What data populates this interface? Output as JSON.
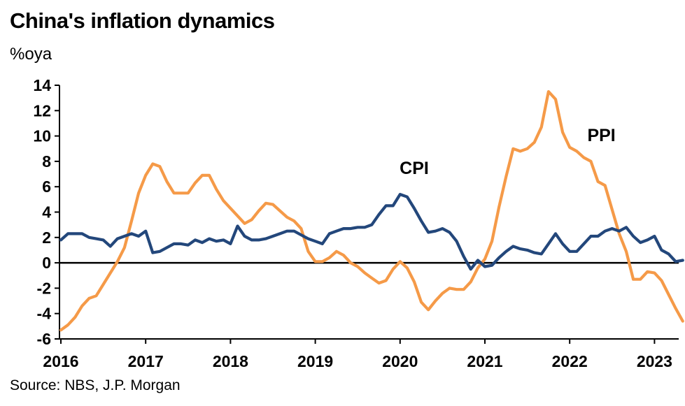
{
  "title": "China's inflation dynamics",
  "source": "Source: NBS, J.P. Morgan",
  "chart_data": {
    "type": "line",
    "title": "China's inflation dynamics",
    "ylabel": "%oya",
    "xlabel": "",
    "ylim": [
      -6,
      14
    ],
    "yticks": [
      -6,
      -4,
      -2,
      0,
      2,
      4,
      6,
      8,
      10,
      12,
      14
    ],
    "xlim": [
      "2016-01",
      "2023-05"
    ],
    "xticks": [
      "2016",
      "2017",
      "2018",
      "2019",
      "2020",
      "2021",
      "2022",
      "2023"
    ],
    "zero_line": true,
    "grid": false,
    "legend": "none",
    "colors": {
      "CPI": "#23477b",
      "PPI": "#f59a48"
    },
    "series": [
      {
        "name": "CPI",
        "color": "#23477b",
        "annotation_at": "2020-03",
        "x": [
          "2016-01",
          "2016-02",
          "2016-03",
          "2016-04",
          "2016-05",
          "2016-06",
          "2016-07",
          "2016-08",
          "2016-09",
          "2016-10",
          "2016-11",
          "2016-12",
          "2017-01",
          "2017-02",
          "2017-03",
          "2017-04",
          "2017-05",
          "2017-06",
          "2017-07",
          "2017-08",
          "2017-09",
          "2017-10",
          "2017-11",
          "2017-12",
          "2018-01",
          "2018-02",
          "2018-03",
          "2018-04",
          "2018-05",
          "2018-06",
          "2018-07",
          "2018-08",
          "2018-09",
          "2018-10",
          "2018-11",
          "2018-12",
          "2019-01",
          "2019-02",
          "2019-03",
          "2019-04",
          "2019-05",
          "2019-06",
          "2019-07",
          "2019-08",
          "2019-09",
          "2019-10",
          "2019-11",
          "2019-12",
          "2020-01",
          "2020-02",
          "2020-03",
          "2020-04",
          "2020-05",
          "2020-06",
          "2020-07",
          "2020-08",
          "2020-09",
          "2020-10",
          "2020-11",
          "2020-12",
          "2021-01",
          "2021-02",
          "2021-03",
          "2021-04",
          "2021-05",
          "2021-06",
          "2021-07",
          "2021-08",
          "2021-09",
          "2021-10",
          "2021-11",
          "2021-12",
          "2022-01",
          "2022-02",
          "2022-03",
          "2022-04",
          "2022-05",
          "2022-06",
          "2022-07",
          "2022-08",
          "2022-09",
          "2022-10",
          "2022-11",
          "2022-12",
          "2023-01",
          "2023-02",
          "2023-03",
          "2023-04",
          "2023-05"
        ],
        "values": [
          1.8,
          2.3,
          2.3,
          2.3,
          2.0,
          1.9,
          1.8,
          1.3,
          1.9,
          2.1,
          2.3,
          2.1,
          2.5,
          0.8,
          0.9,
          1.2,
          1.5,
          1.5,
          1.4,
          1.8,
          1.6,
          1.9,
          1.7,
          1.8,
          1.5,
          2.9,
          2.1,
          1.8,
          1.8,
          1.9,
          2.1,
          2.3,
          2.5,
          2.5,
          2.2,
          1.9,
          1.7,
          1.5,
          2.3,
          2.5,
          2.7,
          2.7,
          2.8,
          2.8,
          3.0,
          3.8,
          4.5,
          4.5,
          5.4,
          5.2,
          4.3,
          3.3,
          2.4,
          2.5,
          2.7,
          2.4,
          1.7,
          0.5,
          -0.5,
          0.2,
          -0.3,
          -0.2,
          0.4,
          0.9,
          1.3,
          1.1,
          1.0,
          0.8,
          0.7,
          1.5,
          2.3,
          1.5,
          0.9,
          0.9,
          1.5,
          2.1,
          2.1,
          2.5,
          2.7,
          2.5,
          2.8,
          2.1,
          1.6,
          1.8,
          2.1,
          1.0,
          0.7,
          0.1,
          0.2
        ]
      },
      {
        "name": "PPI",
        "color": "#f59a48",
        "annotation_at": "2022-05",
        "x": [
          "2016-01",
          "2016-02",
          "2016-03",
          "2016-04",
          "2016-05",
          "2016-06",
          "2016-07",
          "2016-08",
          "2016-09",
          "2016-10",
          "2016-11",
          "2016-12",
          "2017-01",
          "2017-02",
          "2017-03",
          "2017-04",
          "2017-05",
          "2017-06",
          "2017-07",
          "2017-08",
          "2017-09",
          "2017-10",
          "2017-11",
          "2017-12",
          "2018-01",
          "2018-02",
          "2018-03",
          "2018-04",
          "2018-05",
          "2018-06",
          "2018-07",
          "2018-08",
          "2018-09",
          "2018-10",
          "2018-11",
          "2018-12",
          "2019-01",
          "2019-02",
          "2019-03",
          "2019-04",
          "2019-05",
          "2019-06",
          "2019-07",
          "2019-08",
          "2019-09",
          "2019-10",
          "2019-11",
          "2019-12",
          "2020-01",
          "2020-02",
          "2020-03",
          "2020-04",
          "2020-05",
          "2020-06",
          "2020-07",
          "2020-08",
          "2020-09",
          "2020-10",
          "2020-11",
          "2020-12",
          "2021-01",
          "2021-02",
          "2021-03",
          "2021-04",
          "2021-05",
          "2021-06",
          "2021-07",
          "2021-08",
          "2021-09",
          "2021-10",
          "2021-11",
          "2021-12",
          "2022-01",
          "2022-02",
          "2022-03",
          "2022-04",
          "2022-05",
          "2022-06",
          "2022-07",
          "2022-08",
          "2022-09",
          "2022-10",
          "2022-11",
          "2022-12",
          "2023-01",
          "2023-02",
          "2023-03",
          "2023-04",
          "2023-05"
        ],
        "values": [
          -5.3,
          -4.9,
          -4.3,
          -3.4,
          -2.8,
          -2.6,
          -1.7,
          -0.8,
          0.1,
          1.2,
          3.3,
          5.5,
          6.9,
          7.8,
          7.6,
          6.4,
          5.5,
          5.5,
          5.5,
          6.3,
          6.9,
          6.9,
          5.8,
          4.9,
          4.3,
          3.7,
          3.1,
          3.4,
          4.1,
          4.7,
          4.6,
          4.1,
          3.6,
          3.3,
          2.7,
          0.9,
          0.1,
          0.1,
          0.4,
          0.9,
          0.6,
          0.0,
          -0.3,
          -0.8,
          -1.2,
          -1.6,
          -1.4,
          -0.5,
          0.1,
          -0.4,
          -1.5,
          -3.1,
          -3.7,
          -3.0,
          -2.4,
          -2.0,
          -2.1,
          -2.1,
          -1.5,
          -0.4,
          0.3,
          1.7,
          4.4,
          6.8,
          9.0,
          8.8,
          9.0,
          9.5,
          10.7,
          13.5,
          12.9,
          10.3,
          9.1,
          8.8,
          8.3,
          8.0,
          6.4,
          6.1,
          4.2,
          2.3,
          0.9,
          -1.3,
          -1.3,
          -0.7,
          -0.8,
          -1.4,
          -2.5,
          -3.6,
          -4.6
        ]
      }
    ]
  }
}
